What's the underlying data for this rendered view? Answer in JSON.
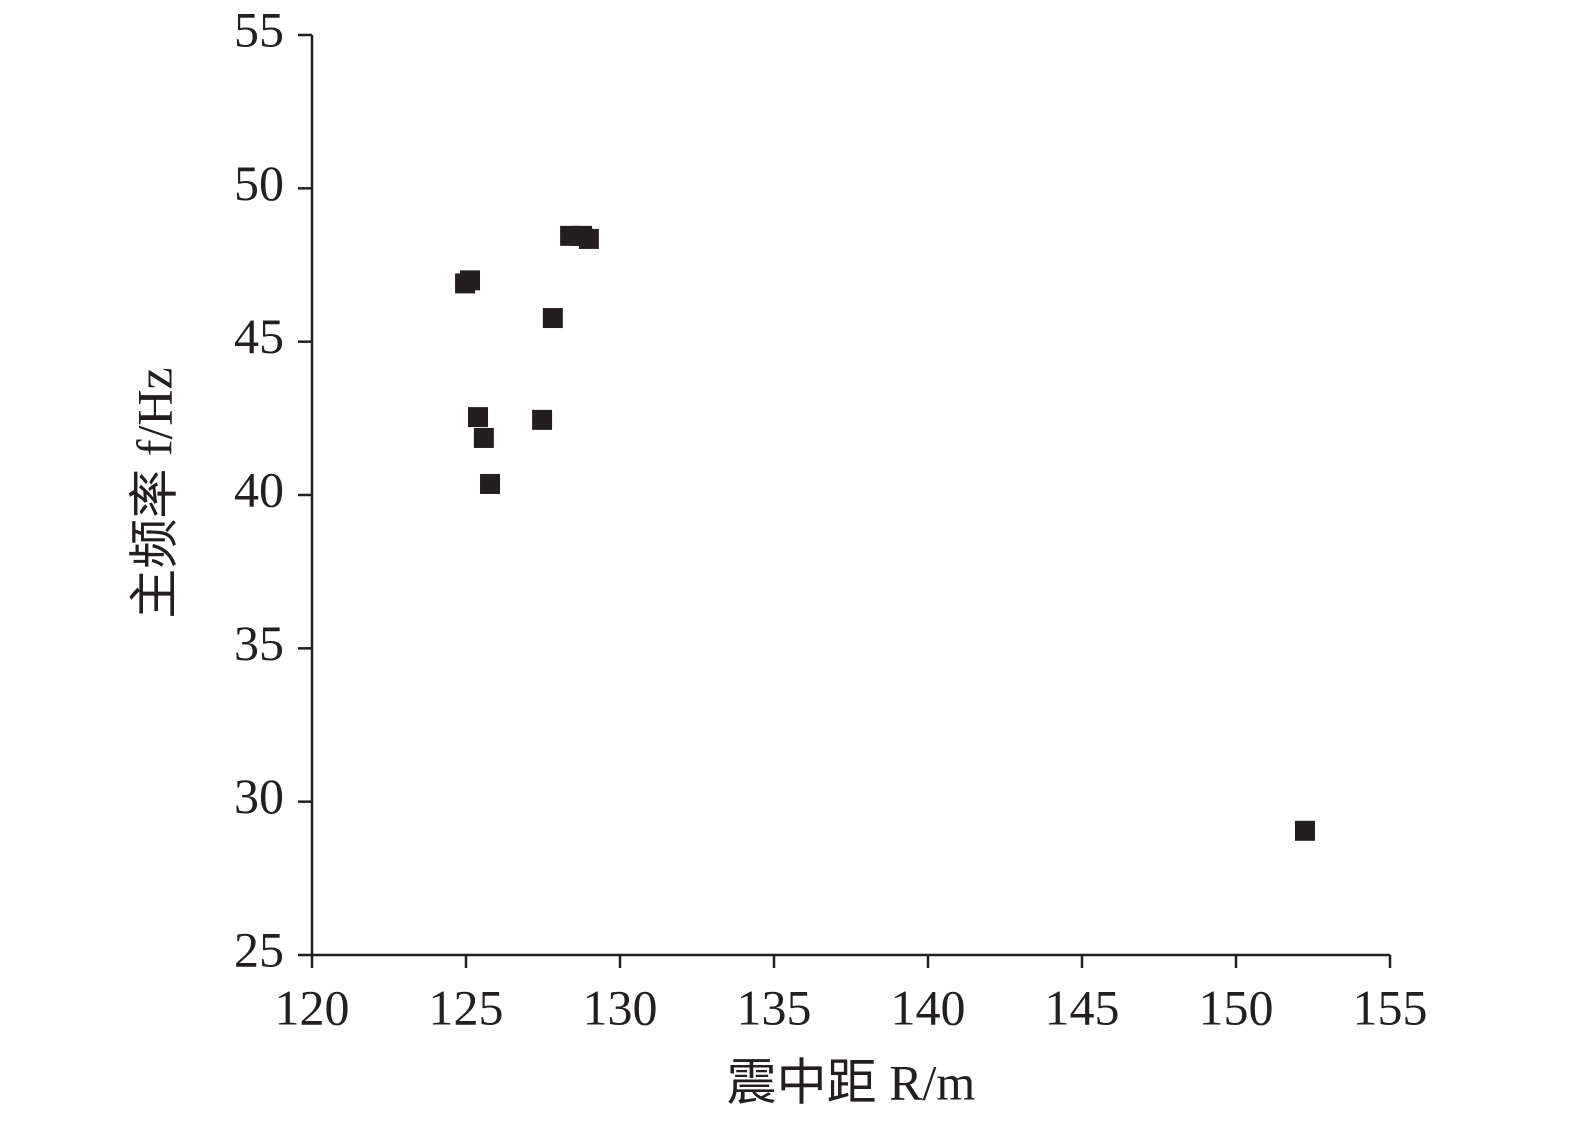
{
  "chart_data": {
    "type": "scatter",
    "x_label": "震中距 R/m",
    "y_label": "主频率 f/Hz",
    "xlim": [
      120,
      155
    ],
    "xticks": [
      120,
      125,
      130,
      135,
      140,
      145,
      150,
      155
    ],
    "ylim": [
      25,
      55
    ],
    "yticks": [
      25,
      30,
      35,
      40,
      45,
      50,
      55
    ],
    "color": "#231f20",
    "x": [
      124.97,
      125.13,
      128.38,
      128.77,
      128.99,
      127.82,
      125.39,
      125.58,
      127.47,
      125.78,
      152.24
    ],
    "values": [
      46.9,
      47.0,
      48.45,
      48.45,
      48.35,
      45.77,
      42.54,
      41.86,
      42.45,
      40.36,
      29.05
    ]
  }
}
